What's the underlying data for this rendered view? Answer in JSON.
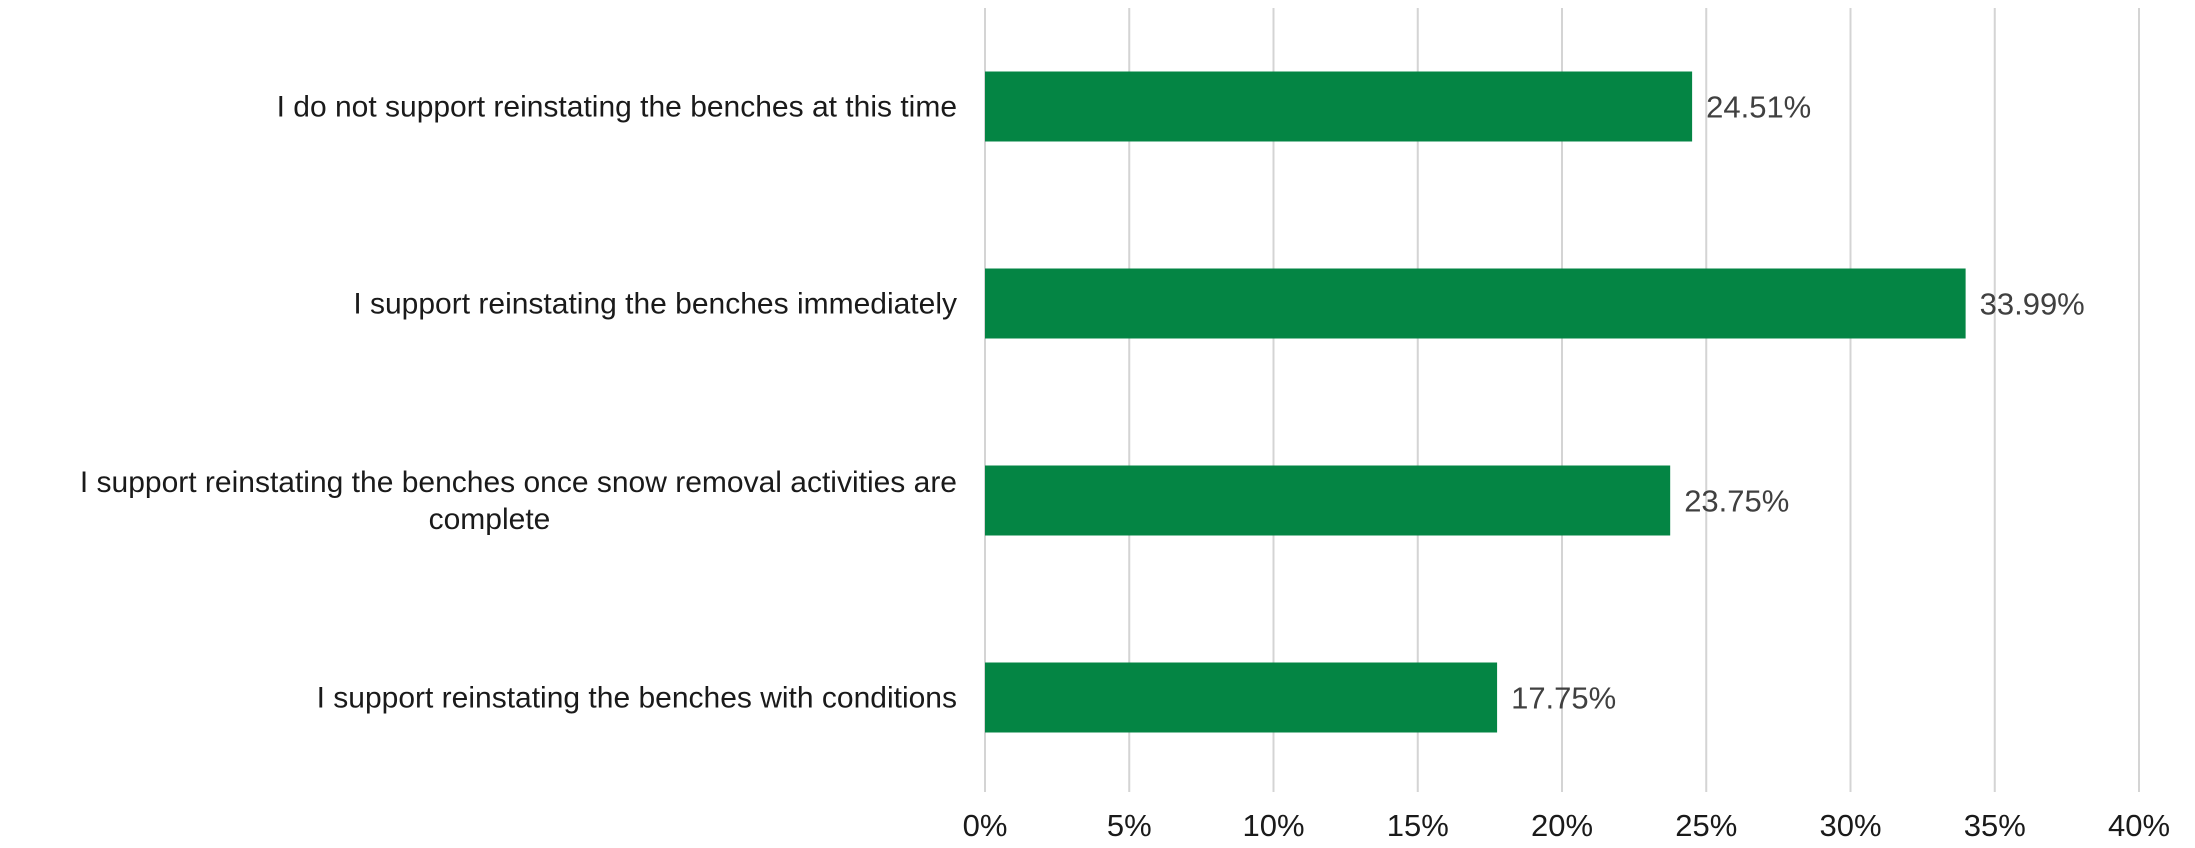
{
  "chart_data": {
    "type": "bar",
    "orientation": "horizontal",
    "categories": [
      [
        "I do not support reinstating the benches at this time"
      ],
      [
        "I support reinstating the benches immediately"
      ],
      [
        "I support reinstating the benches once snow removal activities are",
        "complete"
      ],
      [
        "I support reinstating the benches with conditions"
      ]
    ],
    "values": [
      24.51,
      33.99,
      23.75,
      17.75
    ],
    "value_labels": [
      "24.51%",
      "33.99%",
      "23.75%",
      "17.75%"
    ],
    "xlim": [
      0,
      40
    ],
    "x_ticks": [
      0,
      5,
      10,
      15,
      20,
      25,
      30,
      35,
      40
    ],
    "x_tick_labels": [
      "0%",
      "5%",
      "10%",
      "15%",
      "20%",
      "25%",
      "30%",
      "35%",
      "40%"
    ],
    "grid": "vertical",
    "legend": "none",
    "title": "",
    "xlabel": "",
    "ylabel": ""
  },
  "colors": {
    "bar": "#048544",
    "grid": "#d4d4d4",
    "value_text": "#404040",
    "label_text": "#1a1a1a"
  }
}
